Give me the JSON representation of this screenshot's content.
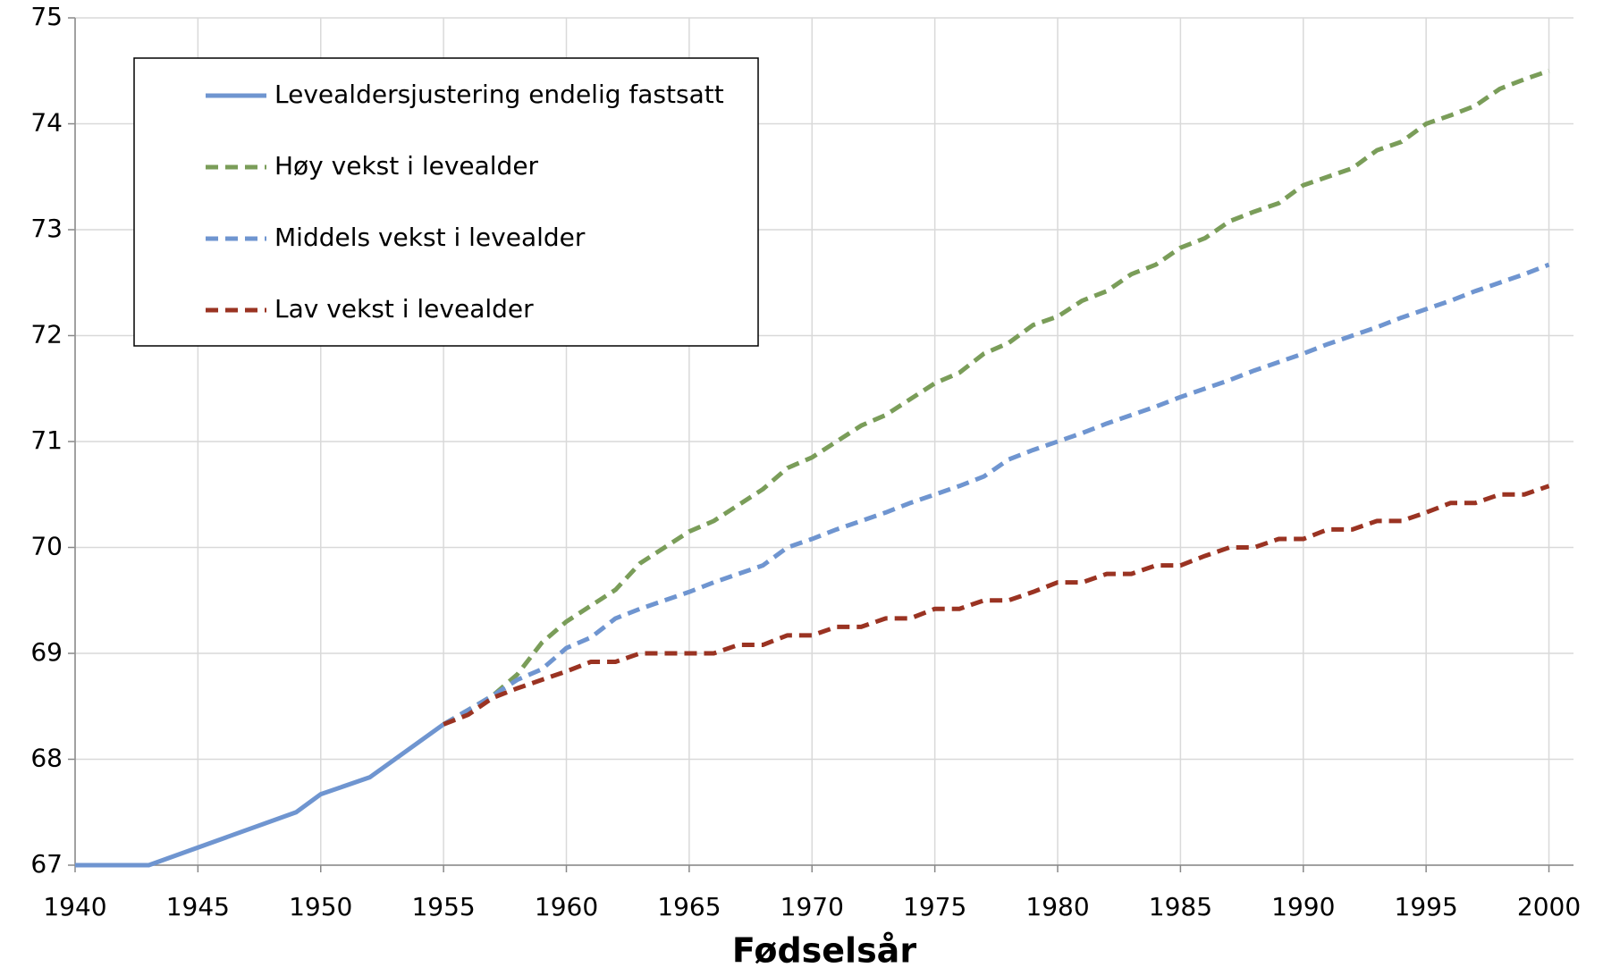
{
  "chart_data": {
    "type": "line",
    "x_label": "Fødselsår",
    "xlim": [
      1940,
      2001
    ],
    "xticks": [
      1940,
      1945,
      1950,
      1955,
      1960,
      1965,
      1970,
      1975,
      1980,
      1985,
      1990,
      1995,
      2000
    ],
    "ylim": [
      67,
      75
    ],
    "yticks": [
      67,
      68,
      69,
      70,
      71,
      72,
      73,
      74,
      75
    ],
    "grid": true,
    "legend": "upper left",
    "series": [
      {
        "name": "Levealdersjustering endelig fastsatt",
        "color": "#6f95d0",
        "dashed": false,
        "x": [
          1940,
          1943,
          1949,
          1950,
          1952,
          1955
        ],
        "values": [
          67,
          67,
          67.5,
          67.67,
          67.83,
          68.33
        ]
      },
      {
        "name": "Høy vekst i levealder",
        "color": "#7a9d59",
        "dashed": true,
        "x": [
          1955,
          1957,
          1958,
          1959,
          1960,
          1962,
          1963,
          1965,
          1966,
          1968,
          1969,
          1970,
          1972,
          1973,
          1975,
          1976,
          1977,
          1978,
          1979,
          1980,
          1981,
          1982,
          1983,
          1984,
          1985,
          1986,
          1987,
          1988,
          1989,
          1990,
          1991,
          1992,
          1993,
          1994,
          1995,
          1996,
          1997,
          1998,
          1999,
          2000
        ],
        "values": [
          68.33,
          68.6,
          68.8,
          69.1,
          69.3,
          69.6,
          69.85,
          70.15,
          70.25,
          70.55,
          70.75,
          70.85,
          71.15,
          71.25,
          71.55,
          71.65,
          71.83,
          71.93,
          72.1,
          72.18,
          72.33,
          72.42,
          72.58,
          72.67,
          72.83,
          72.92,
          73.08,
          73.17,
          73.25,
          73.42,
          73.5,
          73.58,
          73.75,
          73.83,
          74.0,
          74.08,
          74.17,
          74.33,
          74.42,
          74.5
        ]
      },
      {
        "name": "Middels vekst i levealder",
        "color": "#6f95d0",
        "dashed": true,
        "x": [
          1955,
          1957,
          1958,
          1959,
          1960,
          1961,
          1962,
          1963,
          1964,
          1965,
          1966,
          1967,
          1968,
          1969,
          1970,
          1971,
          1972,
          1973,
          1974,
          1975,
          1976,
          1977,
          1978,
          1979,
          1980,
          1981,
          1982,
          1983,
          1984,
          1985,
          1986,
          1987,
          1988,
          1989,
          1990,
          1991,
          1992,
          1993,
          1994,
          1995,
          1996,
          1997,
          1998,
          1999,
          2000
        ],
        "values": [
          68.33,
          68.6,
          68.75,
          68.85,
          69.05,
          69.15,
          69.33,
          69.42,
          69.5,
          69.58,
          69.67,
          69.75,
          69.83,
          70.0,
          70.08,
          70.17,
          70.25,
          70.33,
          70.42,
          70.5,
          70.58,
          70.67,
          70.83,
          70.92,
          71.0,
          71.08,
          71.17,
          71.25,
          71.33,
          71.42,
          71.5,
          71.58,
          71.67,
          71.75,
          71.83,
          71.92,
          72.0,
          72.08,
          72.17,
          72.25,
          72.33,
          72.42,
          72.5,
          72.58,
          72.67
        ]
      },
      {
        "name": "Lav vekst i levealder",
        "color": "#9a3322",
        "dashed": true,
        "x": [
          1955,
          1956,
          1957,
          1958,
          1959,
          1960,
          1961,
          1962,
          1963,
          1964,
          1965,
          1966,
          1967,
          1968,
          1969,
          1970,
          1971,
          1972,
          1973,
          1974,
          1975,
          1976,
          1977,
          1978,
          1979,
          1980,
          1981,
          1982,
          1983,
          1984,
          1985,
          1986,
          1987,
          1988,
          1989,
          1990,
          1991,
          1992,
          1993,
          1994,
          1995,
          1996,
          1997,
          1998,
          1999,
          2000
        ],
        "values": [
          68.33,
          68.42,
          68.58,
          68.67,
          68.75,
          68.83,
          68.92,
          68.92,
          69.0,
          69.0,
          69.0,
          69.0,
          69.08,
          69.08,
          69.17,
          69.17,
          69.25,
          69.25,
          69.33,
          69.33,
          69.42,
          69.42,
          69.5,
          69.5,
          69.58,
          69.67,
          69.67,
          69.75,
          69.75,
          69.83,
          69.83,
          69.92,
          70.0,
          70.0,
          70.08,
          70.08,
          70.17,
          70.17,
          70.25,
          70.25,
          70.33,
          70.42,
          70.42,
          70.5,
          70.5,
          70.58
        ]
      }
    ]
  }
}
